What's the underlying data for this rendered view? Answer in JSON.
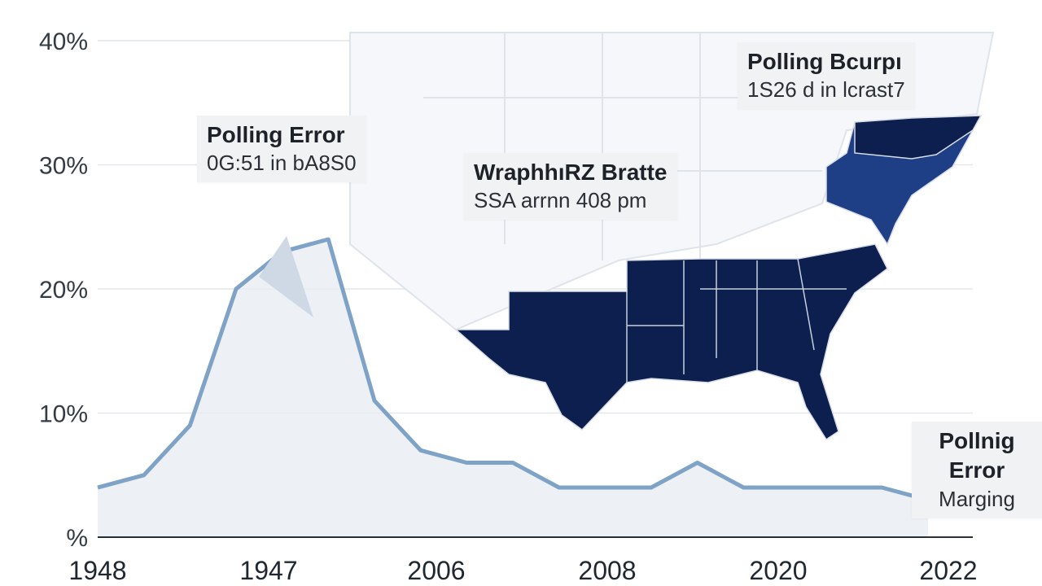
{
  "chart_data": {
    "type": "area",
    "x": [
      "1948",
      "",
      "",
      "",
      "1947",
      "",
      "",
      "2006",
      "",
      "",
      "",
      "2008",
      "",
      "",
      "",
      "2020",
      "",
      "",
      "2022"
    ],
    "values": [
      4,
      5,
      9,
      20,
      23,
      24,
      11,
      7,
      6,
      6,
      4,
      4,
      4,
      6,
      4,
      4,
      4,
      4,
      3
    ],
    "xtick_labels": [
      "1948",
      "1947",
      "2006",
      "2008",
      "2020",
      "2022"
    ],
    "ytick_labels": [
      "%",
      "10%",
      "20%",
      "30%",
      "40%"
    ],
    "ylim": [
      0,
      40
    ],
    "grid": true,
    "colors": {
      "line": "#7fa3c6",
      "fill": "#e8ecf1",
      "map_dark": "#0d1f4f",
      "map_mid": "#1e3f86",
      "map_light": "#f2f4f7",
      "map_border": "#d9dee6"
    },
    "annotations": [
      {
        "title": "Polling Error",
        "text": "0G:51 in bA8S0"
      },
      {
        "title": "WraphhıRZ Bratte",
        "text": "SSA arrnn 408 pm"
      },
      {
        "title": "Polling Bcurpı",
        "text": "1S26 d in lcrast7"
      },
      {
        "title": "Pollnig Error",
        "text": "Marging"
      }
    ]
  }
}
